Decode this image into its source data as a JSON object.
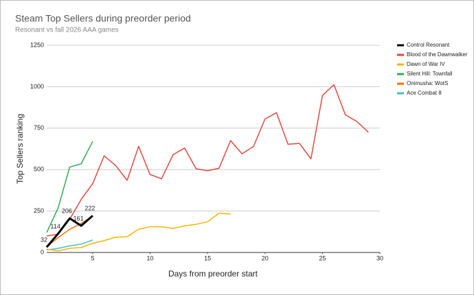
{
  "chart_data": {
    "type": "line",
    "title": "Steam Top Sellers during preorder period",
    "subtitle": "Resonant vs fall 2026 AAA games",
    "x_label": "Days from preorder start",
    "y_label": "Top Sellers ranking",
    "x": [
      1,
      2,
      3,
      4,
      5,
      6,
      7,
      8,
      9,
      10,
      11,
      12,
      13,
      14,
      15,
      16,
      17,
      18,
      19,
      20,
      21,
      22,
      23,
      24,
      25,
      26,
      27,
      28,
      29
    ],
    "xlim": [
      1,
      30
    ],
    "xticks": [
      5,
      10,
      15,
      20,
      25,
      30
    ],
    "ylim": [
      0,
      1250
    ],
    "yticks": [
      0,
      250,
      500,
      750,
      1000,
      1250
    ],
    "grid": true,
    "legend": "right",
    "series": [
      {
        "name": "Control Resonant",
        "color": "#000000",
        "values": [
          32,
          114,
          206,
          161,
          222,
          null,
          null,
          null,
          null,
          null,
          null,
          null,
          null,
          null,
          null,
          null,
          null,
          null,
          null,
          null,
          null,
          null,
          null,
          null,
          null,
          null,
          null,
          null,
          null
        ]
      },
      {
        "name": "Blood of the Dawnwalker",
        "color": "#e0483e",
        "values": [
          100,
          110,
          200,
          320,
          415,
          583,
          525,
          435,
          640,
          470,
          445,
          590,
          630,
          505,
          493,
          508,
          675,
          595,
          640,
          805,
          843,
          653,
          658,
          565,
          947,
          1012,
          830,
          790,
          725
        ]
      },
      {
        "name": "Dawn of War IV",
        "color": "#f4b400",
        "values": [
          20,
          10,
          25,
          30,
          55,
          72,
          92,
          95,
          140,
          155,
          155,
          145,
          160,
          170,
          185,
          237,
          232,
          null,
          null,
          null,
          null,
          null,
          null,
          null,
          null,
          null,
          null,
          null,
          null
        ]
      },
      {
        "name": "Silent Hill: Townfall",
        "color": "#34a853",
        "values": [
          120,
          270,
          515,
          535,
          670,
          null,
          null,
          null,
          null,
          null,
          null,
          null,
          null,
          null,
          null,
          null,
          null,
          null,
          null,
          null,
          null,
          null,
          null,
          null,
          null,
          null,
          null,
          null,
          null
        ]
      },
      {
        "name": "Onimusha: WotS",
        "color": "#ff6d01",
        "values": [
          35,
          90,
          140,
          175,
          220,
          null,
          null,
          null,
          null,
          null,
          null,
          null,
          null,
          null,
          null,
          null,
          null,
          null,
          null,
          null,
          null,
          null,
          null,
          null,
          null,
          null,
          null,
          null,
          null
        ]
      },
      {
        "name": "Ace Combat 8",
        "color": "#46bdc6",
        "values": [
          15,
          25,
          40,
          50,
          75,
          null,
          null,
          null,
          null,
          null,
          null,
          null,
          null,
          null,
          null,
          null,
          null,
          null,
          null,
          null,
          null,
          null,
          null,
          null,
          null,
          null,
          null,
          null,
          null
        ]
      }
    ]
  }
}
